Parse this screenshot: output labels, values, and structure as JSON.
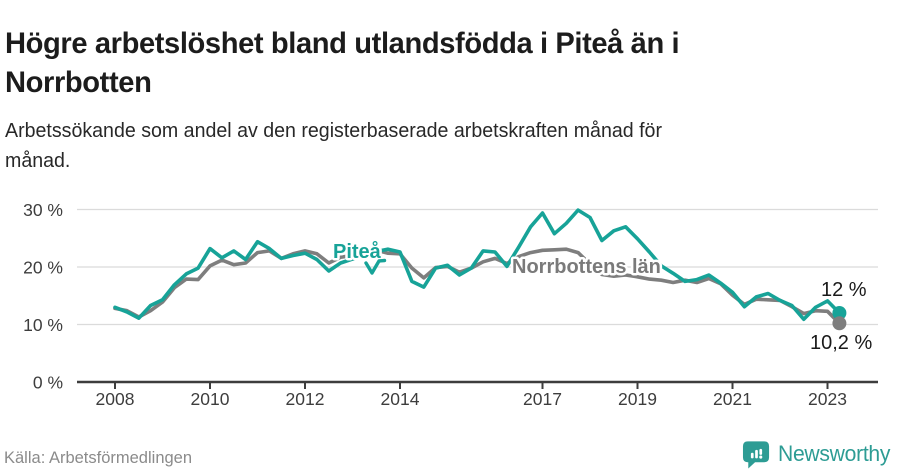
{
  "header": {
    "title": "Högre arbetslöshet bland utlandsfödda i Piteå än i Norrbotten",
    "subtitle": "Arbetssökande som andel av den registerbaserade arbetskraften månad för månad."
  },
  "footer": {
    "source": "Källa: Arbetsförmedlingen",
    "brand": "Newsworthy"
  },
  "colors": {
    "pitea_line": "#17a398",
    "norrbotten_line": "#7e7e7e",
    "brand_teal": "#2d9c94",
    "grid": "#dbdbdb",
    "axis": "#3d3d3d"
  },
  "chart_data": {
    "type": "line",
    "title": "",
    "xlabel": "",
    "ylabel": "",
    "y_tick_format": "percent",
    "grid": "horizontal",
    "legend": "inline-labels",
    "ylim": [
      0,
      30
    ],
    "xlim": [
      2008,
      2023.25
    ],
    "x": [
      2008.0,
      2008.25,
      2008.5,
      2008.75,
      2009.0,
      2009.25,
      2009.5,
      2009.75,
      2010.0,
      2010.25,
      2010.5,
      2010.75,
      2011.0,
      2011.25,
      2011.5,
      2011.75,
      2012.0,
      2012.25,
      2012.5,
      2012.75,
      2013.0,
      2013.25,
      2013.5,
      2013.75,
      2014.0,
      2014.25,
      2014.5,
      2014.75,
      2015.0,
      2015.25,
      2015.5,
      2015.75,
      2016.0,
      2016.25,
      2016.5,
      2016.75,
      2017.0,
      2017.25,
      2017.5,
      2017.75,
      2018.0,
      2018.25,
      2018.5,
      2018.75,
      2019.0,
      2019.25,
      2019.5,
      2019.75,
      2020.0,
      2020.25,
      2020.5,
      2020.75,
      2021.0,
      2021.25,
      2021.5,
      2021.75,
      2022.0,
      2022.25,
      2022.5,
      2022.75,
      2023.0,
      2023.25
    ],
    "series": [
      {
        "name": "Piteå",
        "color": "#17a398",
        "end_label": "12 %",
        "values": [
          13.0,
          12.2,
          11.1,
          13.3,
          14.3,
          16.9,
          18.8,
          19.8,
          23.2,
          21.6,
          22.8,
          21.3,
          24.4,
          23.2,
          21.5,
          22.0,
          22.4,
          21.3,
          19.3,
          20.7,
          21.4,
          22.1,
          22.7,
          23.1,
          22.6,
          17.5,
          16.5,
          19.8,
          20.3,
          18.6,
          19.8,
          22.8,
          22.6,
          20.1,
          23.5,
          27.0,
          29.4,
          25.8,
          27.6,
          29.9,
          28.6,
          24.6,
          26.3,
          27.0,
          24.9,
          22.6,
          20.2,
          18.9,
          17.5,
          17.8,
          18.6,
          17.2,
          15.6,
          13.1,
          14.8,
          15.4,
          14.2,
          13.3,
          10.9,
          13.0,
          14.1,
          12.0
        ]
      },
      {
        "name": "Norrbottens län",
        "color": "#7e7e7e",
        "end_label": "10,2 %",
        "values": [
          12.8,
          12.4,
          11.3,
          12.4,
          13.9,
          16.4,
          17.9,
          17.8,
          20.2,
          21.2,
          20.4,
          20.7,
          22.5,
          22.8,
          21.5,
          22.3,
          22.8,
          22.3,
          20.7,
          21.7,
          22.0,
          22.2,
          22.9,
          22.4,
          22.3,
          19.8,
          18.1,
          19.9,
          20.1,
          19.1,
          19.8,
          20.9,
          21.5,
          20.6,
          21.8,
          22.5,
          22.9,
          23.0,
          23.1,
          22.5,
          20.5,
          18.7,
          18.4,
          18.6,
          18.3,
          17.9,
          17.7,
          17.3,
          17.7,
          17.3,
          18.0,
          17.1,
          15.1,
          13.5,
          14.4,
          14.3,
          14.2,
          13.1,
          11.9,
          12.4,
          12.3,
          10.2
        ]
      }
    ],
    "yticks": [
      {
        "v": 30,
        "label": "30 %"
      },
      {
        "v": 20,
        "label": "20 %"
      },
      {
        "v": 10,
        "label": "10 %"
      },
      {
        "v": 0,
        "label": "0 %"
      }
    ],
    "xticks": [
      {
        "v": 2008,
        "label": "2008"
      },
      {
        "v": 2010,
        "label": "2010"
      },
      {
        "v": 2012,
        "label": "2012"
      },
      {
        "v": 2014,
        "label": "2014"
      },
      {
        "v": 2017,
        "label": "2017"
      },
      {
        "v": 2019,
        "label": "2019"
      },
      {
        "v": 2021,
        "label": "2021"
      },
      {
        "v": 2023,
        "label": "2023"
      }
    ]
  }
}
